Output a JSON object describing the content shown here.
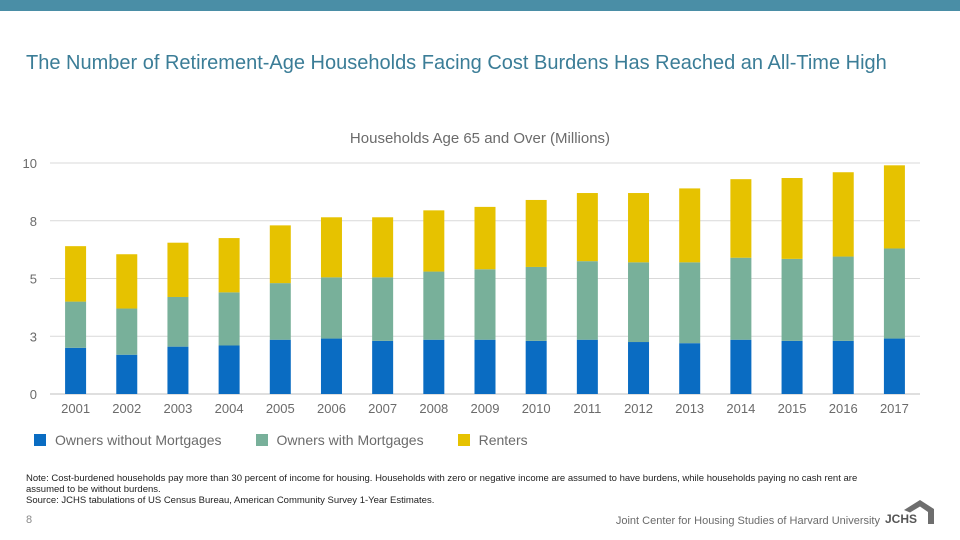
{
  "title": "The Number of Retirement-Age Households Facing Cost Burdens Has Reached an All-Time High",
  "page_number": "8",
  "footer": "Joint Center for Housing Studies of Harvard University",
  "logo_text": "JCHS",
  "notes": [
    "Note: Cost-burdened households pay more than 30 percent of income for housing. Households with zero or negative income are assumed to have burdens, while households paying no cash rent are assumed to be without burdens.",
    "Source: JCHS tabulations of US Census Bureau, American Community Survey 1-Year Estimates."
  ],
  "colors": {
    "top_bar": "#4a8ea6",
    "title": "#3b7d97",
    "gridline": "#d9d9d9"
  },
  "chart_data": {
    "type": "bar",
    "stacked": true,
    "title": "Households Age 65 and Over (Millions)",
    "categories": [
      "2001",
      "2002",
      "2003",
      "2004",
      "2005",
      "2006",
      "2007",
      "2008",
      "2009",
      "2010",
      "2011",
      "2012",
      "2013",
      "2014",
      "2015",
      "2016",
      "2017"
    ],
    "series": [
      {
        "name": "Owners without Mortgages",
        "color": "#0a6cc2",
        "values": [
          2.0,
          1.7,
          2.05,
          2.1,
          2.35,
          2.4,
          2.3,
          2.35,
          2.35,
          2.3,
          2.35,
          2.25,
          2.2,
          2.35,
          2.3,
          2.3,
          2.4
        ]
      },
      {
        "name": "Owners with Mortgages",
        "color": "#78b09a",
        "values": [
          2.0,
          2.0,
          2.15,
          2.3,
          2.45,
          2.65,
          2.75,
          2.95,
          3.05,
          3.2,
          3.4,
          3.45,
          3.5,
          3.55,
          3.55,
          3.65,
          3.9
        ]
      },
      {
        "name": "Renters",
        "color": "#e6c200",
        "values": [
          2.4,
          2.35,
          2.35,
          2.35,
          2.5,
          2.6,
          2.6,
          2.65,
          2.7,
          2.9,
          2.95,
          3.0,
          3.2,
          3.4,
          3.5,
          3.65,
          3.6
        ]
      }
    ],
    "ylim": [
      0,
      10
    ],
    "yticks": [
      "0",
      "3",
      "5",
      "8",
      "10"
    ],
    "grid": true,
    "legend_position": "bottom"
  }
}
